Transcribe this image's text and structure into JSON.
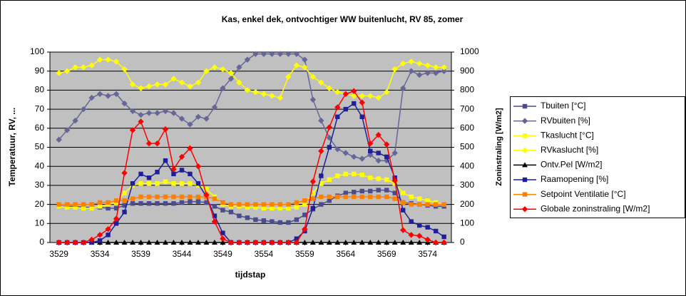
{
  "chart_data": {
    "type": "line",
    "title": "Kas, enkel dek, ontvochtiger WW buitenlucht, RV 85, zomer",
    "xlabel": "tijdstap",
    "ylabel": "Temperatuur,  RV, ...",
    "y2label": "Zoninstraling [W/m2]",
    "x": [
      3529,
      3530,
      3531,
      3532,
      3533,
      3534,
      3535,
      3536,
      3537,
      3538,
      3539,
      3540,
      3541,
      3542,
      3543,
      3544,
      3545,
      3546,
      3547,
      3548,
      3549,
      3550,
      3551,
      3552,
      3553,
      3554,
      3555,
      3556,
      3557,
      3558,
      3559,
      3560,
      3561,
      3562,
      3563,
      3564,
      3565,
      3566,
      3567,
      3568,
      3569,
      3570,
      3571,
      3572,
      3573,
      3574,
      3575,
      3576
    ],
    "xlim": [
      3527.9,
      3576.9
    ],
    "xticks": [
      3529,
      3534,
      3539,
      3544,
      3549,
      3554,
      3559,
      3564,
      3569,
      3574
    ],
    "ylim": [
      0,
      100
    ],
    "yticks": [
      0,
      10,
      20,
      30,
      40,
      50,
      60,
      70,
      80,
      90,
      100
    ],
    "y2lim": [
      0,
      1000
    ],
    "y2ticks": [
      0,
      100,
      200,
      300,
      400,
      500,
      600,
      700,
      800,
      900,
      1000
    ],
    "grid": true,
    "legend": "right",
    "series": [
      {
        "name": "Tbuiten [°C]",
        "color": "#4b4b8f",
        "marker": "square",
        "values": [
          19,
          19,
          19,
          18.5,
          18.5,
          18.5,
          18,
          18,
          19.5,
          20.5,
          20.5,
          20.5,
          20.5,
          20.5,
          20.5,
          21,
          21.5,
          21.5,
          21,
          19,
          17,
          16,
          14,
          13,
          12,
          11.5,
          11,
          10.5,
          10.5,
          12,
          14.5,
          17.5,
          20,
          22,
          24.5,
          26,
          26.5,
          27,
          27,
          27.5,
          27.5,
          26,
          21,
          20.5,
          20,
          19.5,
          19,
          19
        ]
      },
      {
        "name": "RVbuiten [%]",
        "color": "#666699",
        "marker": "diamond",
        "values": [
          54,
          59,
          64,
          70,
          76,
          78,
          77,
          78,
          73,
          69,
          67,
          68,
          68,
          69,
          68,
          65,
          62,
          66,
          65,
          71,
          81,
          86,
          92,
          96,
          99,
          99,
          99,
          99,
          99,
          99,
          96,
          75,
          64,
          55,
          49,
          47,
          45,
          44,
          46,
          43,
          43,
          47,
          81,
          90,
          88,
          89,
          89,
          90
        ]
      },
      {
        "name": "Tkaslucht [°C]",
        "color": "#ffff00",
        "marker": "square",
        "values": [
          19,
          18.5,
          18.5,
          18,
          18,
          19,
          20,
          21,
          26,
          30,
          31,
          31,
          31,
          32,
          31,
          31,
          31,
          30,
          28,
          24,
          20,
          19,
          19,
          18.5,
          18.5,
          18,
          18,
          18,
          18,
          18.5,
          20,
          26,
          31,
          33,
          35,
          36,
          36,
          35.5,
          34,
          33.5,
          33,
          31,
          26,
          24,
          23,
          22,
          21,
          20
        ]
      },
      {
        "name": "RVkaslucht [%]",
        "color": "#ffff00",
        "marker": "diamond",
        "values": [
          89,
          90,
          92,
          92,
          93,
          96,
          96,
          95,
          91,
          83,
          81,
          82,
          83,
          83,
          86,
          84,
          82,
          84,
          90,
          92,
          91,
          89,
          84,
          80,
          79,
          78,
          77,
          76,
          87,
          93,
          92,
          87,
          84,
          81,
          79,
          78,
          77,
          77,
          77,
          76,
          79,
          91,
          94,
          95,
          94,
          93,
          92,
          92
        ]
      },
      {
        "name": "Ontv.Pel [W/m2]",
        "color": "#000000",
        "marker": "triangle",
        "values": [
          0,
          0,
          0,
          0,
          0,
          0,
          0,
          0,
          0,
          0,
          0,
          0,
          0,
          0,
          0,
          0,
          0,
          0,
          0,
          0,
          0,
          0,
          0,
          0,
          0,
          0,
          0,
          0,
          0,
          0,
          0,
          0,
          0,
          0,
          0,
          0,
          0,
          0,
          0,
          0,
          0,
          0,
          0,
          0,
          0,
          0,
          0,
          0
        ]
      },
      {
        "name": "Raamopening [%]",
        "color": "#1f1f99",
        "marker": "square",
        "values": [
          0,
          0,
          0,
          0,
          0,
          1,
          4,
          10,
          16,
          31,
          36,
          34,
          37,
          43,
          36,
          38,
          36,
          31,
          24,
          14,
          5,
          0,
          0,
          0,
          0,
          0,
          0,
          0,
          0,
          2,
          6,
          18,
          35,
          50,
          66,
          70,
          73,
          66,
          48,
          47,
          45,
          34,
          17,
          11,
          9,
          8,
          6,
          3
        ]
      },
      {
        "name": "Setpoint Ventilatie [°C]",
        "color": "#ff8000",
        "marker": "square",
        "values": [
          20,
          20,
          20,
          20,
          20,
          21,
          21,
          22,
          22,
          23,
          24,
          24,
          24,
          24,
          24,
          24,
          24,
          24,
          24,
          23,
          21,
          20,
          20,
          20,
          20,
          20,
          20,
          20,
          20,
          21,
          22,
          23,
          24,
          24,
          24,
          24,
          24,
          24,
          24,
          24,
          24,
          23,
          21,
          20,
          20,
          20,
          20,
          20
        ]
      },
      {
        "name": "Globale zoninstraling  [W/m2]",
        "color": "#ff0000",
        "marker": "diamond",
        "axis": "y2",
        "values": [
          0,
          0,
          0,
          0,
          15,
          40,
          70,
          125,
          365,
          590,
          635,
          520,
          520,
          595,
          385,
          450,
          495,
          400,
          250,
          110,
          20,
          0,
          0,
          0,
          0,
          0,
          0,
          0,
          0,
          0,
          70,
          320,
          480,
          605,
          710,
          780,
          795,
          735,
          520,
          565,
          515,
          325,
          65,
          40,
          35,
          15,
          0,
          0
        ]
      }
    ]
  }
}
